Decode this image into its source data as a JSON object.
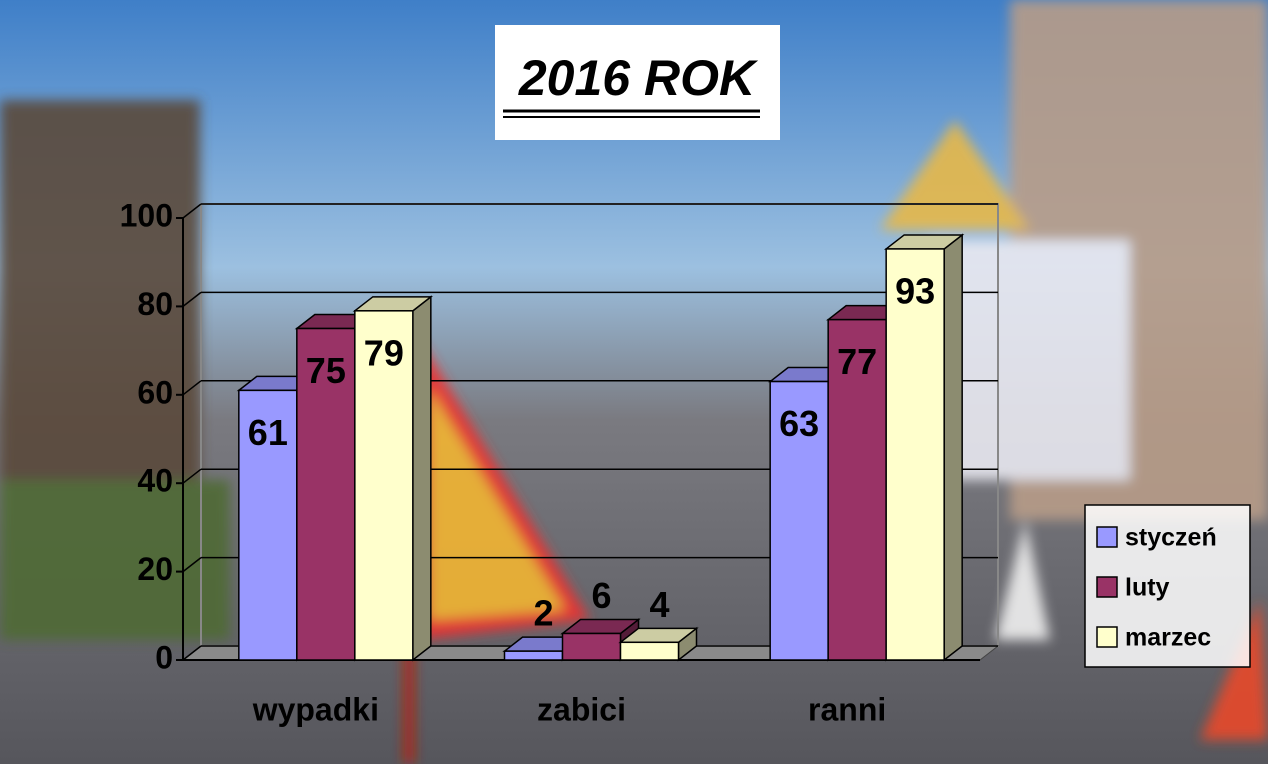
{
  "chart_data": {
    "type": "bar3d",
    "title": "2016 ROK",
    "categories": [
      "wypadki",
      "zabici",
      "ranni"
    ],
    "series": [
      {
        "name": "styczeń",
        "color": "#9999ff",
        "values": [
          61,
          2,
          63
        ]
      },
      {
        "name": "luty",
        "color": "#993366",
        "values": [
          75,
          6,
          77
        ]
      },
      {
        "name": "marzec",
        "color": "#ffffcc",
        "values": [
          79,
          4,
          93
        ]
      }
    ],
    "ylim": [
      0,
      100
    ],
    "yticks": [
      0,
      20,
      40,
      60,
      80,
      100
    ],
    "grid": true,
    "legend": "right"
  }
}
